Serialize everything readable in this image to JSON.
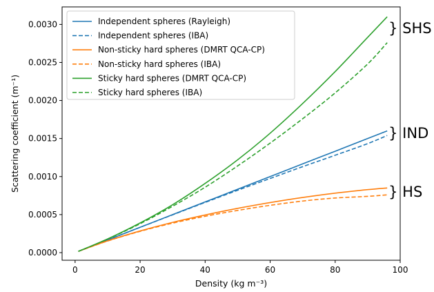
{
  "chart_data": {
    "type": "line",
    "title": "",
    "xlabel": "Density (kg m⁻³)",
    "ylabel": "Scattering coefficient (m⁻¹)",
    "xlim": [
      -4,
      100
    ],
    "ylim": [
      -0.0001,
      0.00323
    ],
    "xticks": [
      0,
      20,
      40,
      60,
      80,
      100
    ],
    "yticks": [
      0.0,
      0.0005,
      0.001,
      0.0015,
      0.002,
      0.0025,
      0.003
    ],
    "xtick_labels": [
      "0",
      "20",
      "40",
      "60",
      "80",
      "100"
    ],
    "ytick_labels": [
      "0.0000",
      "0.0005",
      "0.0010",
      "0.0015",
      "0.0020",
      "0.0025",
      "0.0030"
    ],
    "x": [
      1,
      10,
      20,
      30,
      40,
      50,
      60,
      70,
      80,
      90,
      96
    ],
    "series": [
      {
        "name": "Independent spheres (Rayleigh)",
        "color": "#1f77b4",
        "dash": "solid",
        "values": [
          1.7e-05,
          0.000167,
          0.000333,
          0.0005,
          0.000667,
          0.000833,
          0.001,
          0.001167,
          0.001333,
          0.0015,
          0.0016
        ]
      },
      {
        "name": "Independent spheres (IBA)",
        "color": "#1f77b4",
        "dash": "dashed",
        "values": [
          1.7e-05,
          0.000166,
          0.000333,
          0.000497,
          0.00066,
          0.00082,
          0.000975,
          0.00113,
          0.00128,
          0.001433,
          0.00154
        ]
      },
      {
        "name": "Non-sticky hard spheres (DMRT QCA-CP)",
        "color": "#ff7f0e",
        "dash": "solid",
        "values": [
          1.7e-05,
          0.000155,
          0.000285,
          0.000398,
          0.000495,
          0.000582,
          0.000658,
          0.000725,
          0.000782,
          0.000828,
          0.00085
        ]
      },
      {
        "name": "Non-sticky hard spheres (IBA)",
        "color": "#ff7f0e",
        "dash": "dashed",
        "values": [
          1.7e-05,
          0.000153,
          0.00028,
          0.000388,
          0.000478,
          0.000555,
          0.000622,
          0.000678,
          0.000718,
          0.00074,
          0.00076
        ]
      },
      {
        "name": "Sticky hard spheres (DMRT QCA-CP)",
        "color": "#2ca02c",
        "dash": "solid",
        "values": [
          1.7e-05,
          0.00018,
          0.00039,
          0.00063,
          0.00091,
          0.00122,
          0.00157,
          0.00196,
          0.00238,
          0.00283,
          0.0031
        ]
      },
      {
        "name": "Sticky hard spheres (IBA)",
        "color": "#2ca02c",
        "dash": "dashed",
        "values": [
          1.7e-05,
          0.000178,
          0.00038,
          0.00061,
          0.00086,
          0.00114,
          0.00144,
          0.00176,
          0.0021,
          0.00248,
          0.00276
        ]
      }
    ],
    "annotations": [
      {
        "text": "} SHS",
        "x": 96,
        "y": 0.00295
      },
      {
        "text": "} IND",
        "x": 96,
        "y": 0.00157
      },
      {
        "text": "} HS",
        "x": 96,
        "y": 0.0008
      }
    ],
    "legend_position": "top-left",
    "grid": false
  }
}
